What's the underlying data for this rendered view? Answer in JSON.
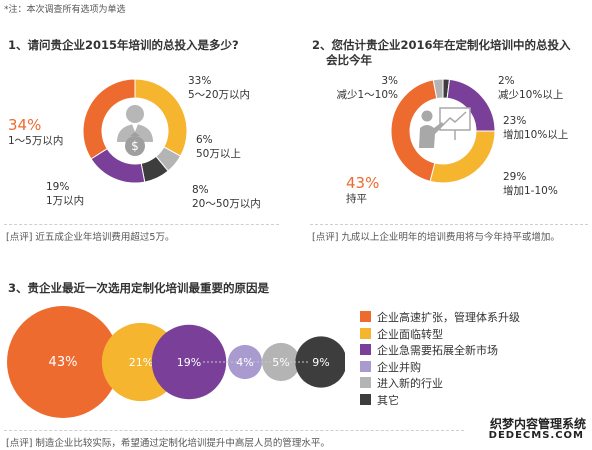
{
  "note": "*注：本次调查所有选项为单选",
  "q1": {
    "title": "1、请问贵企业2015年培训的总投入是多少?"
  },
  "q2": {
    "title_line1": "2、您估计贵企业2016年在定制化培训中的总投入",
    "title_line2": "会比今年"
  },
  "q3": {
    "title": "3、贵企业最近一次选用定制化培训最重要的原因是"
  },
  "comment1": "[点评] 近五成企业年培训费用超过5万。",
  "comment2": "[点评] 九成以上企业明年的培训费用将与今年持平或增加。",
  "comment3": "[点评] 制造企业比较实际，希望通过定制化培训提升中高层人员的管理水平。",
  "watermark": {
    "line1": "织梦内容管理系统",
    "line2": "DEDECMS.COM"
  },
  "colors": {
    "orange": "#ee6b2f",
    "yellow": "#f6b52e",
    "purple": "#7a3f98",
    "lavender": "#a99bd0",
    "gray": "#b4b4b4",
    "dark": "#3d3d3d"
  },
  "chart_data": [
    {
      "type": "pie",
      "title": "1、请问贵企业2015年培训的总投入是多少?",
      "slices": [
        {
          "label": "5～20万以内",
          "pct": "33%",
          "value": 33,
          "color": "#f6b52e"
        },
        {
          "label": "50万以上",
          "pct": "6%",
          "value": 6,
          "color": "#b4b4b4"
        },
        {
          "label": "20～50万以内",
          "pct": "8%",
          "value": 8,
          "color": "#3d3d3d"
        },
        {
          "label": "1万以内",
          "pct": "19%",
          "value": 19,
          "color": "#7a3f98"
        },
        {
          "label": "1～5万以内",
          "pct": "34%",
          "value": 34,
          "color": "#ee6b2f"
        }
      ]
    },
    {
      "type": "pie",
      "title": "2、您估计贵企业2016年在定制化培训中的总投入会比今年",
      "slices": [
        {
          "label": "减少10%以上",
          "pct": "2%",
          "value": 2,
          "color": "#3d3d3d"
        },
        {
          "label": "增加10%以上",
          "pct": "23%",
          "value": 23,
          "color": "#7a3f98"
        },
        {
          "label": "增加1-10%",
          "pct": "29%",
          "value": 29,
          "color": "#f6b52e"
        },
        {
          "label": "持平",
          "pct": "43%",
          "value": 43,
          "color": "#ee6b2f"
        },
        {
          "label": "减少1～10%",
          "pct": "3%",
          "value": 3,
          "color": "#b4b4b4"
        }
      ]
    },
    {
      "type": "bubble",
      "title": "3、贵企业最近一次选用定制化培训最重要的原因是",
      "series": [
        {
          "name": "企业高速扩张，管理体系升级",
          "pct": "43%",
          "value": 43,
          "color": "#ee6b2f"
        },
        {
          "name": "企业面临转型",
          "pct": "21%",
          "value": 21,
          "color": "#f6b52e"
        },
        {
          "name": "企业急需要拓展全新市场",
          "pct": "19%",
          "value": 19,
          "color": "#7a3f98"
        },
        {
          "name": "企业并购",
          "pct": "4%",
          "value": 4,
          "color": "#a99bd0"
        },
        {
          "name": "进入新的行业",
          "pct": "5%",
          "value": 5,
          "color": "#b4b4b4"
        },
        {
          "name": "其它",
          "pct": "9%",
          "value": 9,
          "color": "#3d3d3d"
        }
      ]
    }
  ]
}
